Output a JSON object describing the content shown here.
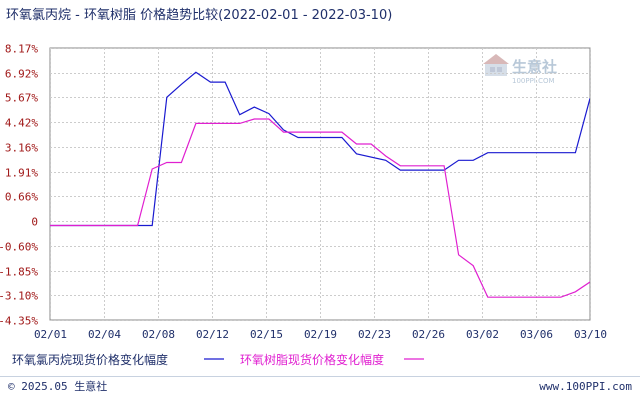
{
  "chart_data": {
    "type": "line",
    "title": "环氧氯丙烷 - 环氧树脂 价格趋势比较(2022-02-01 - 2022-03-10)",
    "x_ticks": [
      "02/01",
      "02/04",
      "02/08",
      "02/12",
      "02/15",
      "02/19",
      "02/23",
      "02/26",
      "03/02",
      "03/06",
      "03/10"
    ],
    "y_ticks": [
      "8.17%",
      "6.92%",
      "5.67%",
      "4.42%",
      "3.16%",
      "1.91%",
      "0.66%",
      "0",
      "-0.60%",
      "-1.85%",
      "-3.10%",
      "-4.35%"
    ],
    "ylim": [
      -4.35,
      8.17
    ],
    "xlim": [
      "2022-02-01",
      "2022-03-10"
    ],
    "series": [
      {
        "name": "环氧氯丙烷现货价格变化幅度",
        "color": "#1a1ad0",
        "points": [
          [
            "2022-02-01",
            0
          ],
          [
            "2022-02-07",
            0
          ],
          [
            "2022-02-08",
            0
          ],
          [
            "2022-02-09",
            5.9
          ],
          [
            "2022-02-10",
            6.5
          ],
          [
            "2022-02-11",
            7.05
          ],
          [
            "2022-02-12",
            6.6
          ],
          [
            "2022-02-13",
            6.6
          ],
          [
            "2022-02-14",
            5.1
          ],
          [
            "2022-02-15",
            5.45
          ],
          [
            "2022-02-16",
            5.15
          ],
          [
            "2022-02-17",
            4.4
          ],
          [
            "2022-02-18",
            4.05
          ],
          [
            "2022-02-21",
            4.05
          ],
          [
            "2022-02-22",
            3.3
          ],
          [
            "2022-02-24",
            3.0
          ],
          [
            "2022-02-25",
            2.55
          ],
          [
            "2022-02-28",
            2.55
          ],
          [
            "2022-03-01",
            3.0
          ],
          [
            "2022-03-02",
            3.0
          ],
          [
            "2022-03-03",
            3.35
          ],
          [
            "2022-03-08",
            3.35
          ],
          [
            "2022-03-09",
            3.35
          ],
          [
            "2022-03-10",
            5.85
          ]
        ]
      },
      {
        "name": "环氧树脂现货价格变化幅度",
        "color": "#e020d0",
        "points": [
          [
            "2022-02-01",
            0
          ],
          [
            "2022-02-07",
            0
          ],
          [
            "2022-02-08",
            2.6
          ],
          [
            "2022-02-09",
            2.9
          ],
          [
            "2022-02-10",
            2.9
          ],
          [
            "2022-02-11",
            4.7
          ],
          [
            "2022-02-14",
            4.7
          ],
          [
            "2022-02-15",
            4.9
          ],
          [
            "2022-02-16",
            4.9
          ],
          [
            "2022-02-17",
            4.3
          ],
          [
            "2022-02-21",
            4.3
          ],
          [
            "2022-02-22",
            3.75
          ],
          [
            "2022-02-23",
            3.75
          ],
          [
            "2022-02-24",
            3.2
          ],
          [
            "2022-02-25",
            2.75
          ],
          [
            "2022-02-28",
            2.75
          ],
          [
            "2022-03-01",
            -1.35
          ],
          [
            "2022-03-02",
            -1.85
          ],
          [
            "2022-03-03",
            -3.3
          ],
          [
            "2022-03-08",
            -3.3
          ],
          [
            "2022-03-09",
            -3.05
          ],
          [
            "2022-03-10",
            -2.6
          ],
          [
            "2022-03-12",
            -2.6
          ]
        ]
      }
    ],
    "grid": true,
    "legend": "bottom"
  },
  "footer": {
    "copyright": "© 2025.05 生意社",
    "url": "www.100PPI.com"
  },
  "watermark": {
    "text": "生意社",
    "sub": "100PPI.COM"
  }
}
